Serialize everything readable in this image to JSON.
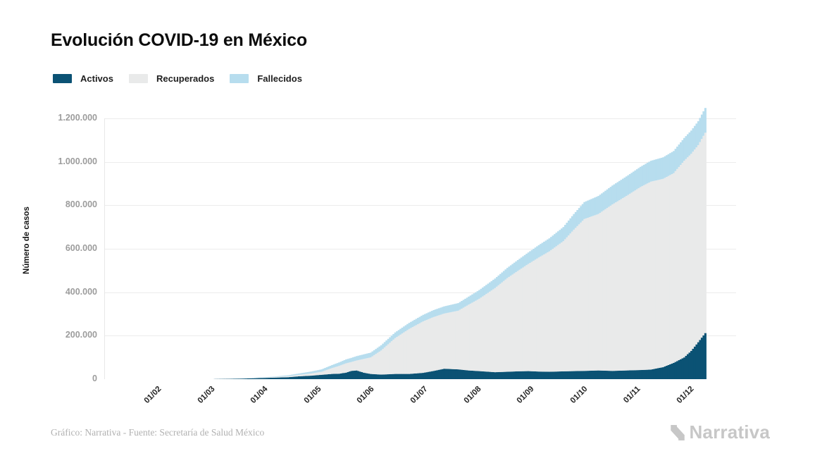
{
  "title": "Evolución COVID-19 en México",
  "legend": {
    "items": [
      {
        "id": "activos",
        "label": "Activos",
        "color": "#0b5274"
      },
      {
        "id": "recuperados",
        "label": "Recuperados",
        "color": "#e9eaea"
      },
      {
        "id": "fallecidos",
        "label": "Fallecidos",
        "color": "#b7ddee"
      }
    ]
  },
  "footer": {
    "credit": "Gráfico: Narrativa - Fuente: Secretaría de Salud México",
    "brand": "Narrativa"
  },
  "chart_data": {
    "type": "area",
    "stacked": true,
    "title": "Evolución COVID-19 en México",
    "ylabel": "Número de casos",
    "xlabel": "",
    "ylim": [
      0,
      1250000
    ],
    "grid": "horizontal",
    "legend_position": "top-left",
    "yticks": [
      "0",
      "200.000",
      "400.000",
      "600.000",
      "800.000",
      "1.000.000",
      "1.200.000"
    ],
    "xticks": [
      "01/02",
      "01/03",
      "01/04",
      "01/05",
      "01/06",
      "01/07",
      "01/08",
      "01/09",
      "01/10",
      "01/11",
      "01/12"
    ],
    "series_order": [
      "activos",
      "recuperados",
      "fallecidos"
    ],
    "colors": {
      "activos": "#0b5274",
      "recuperados": "#e9eaea",
      "fallecidos": "#b7ddee"
    },
    "samples": [
      {
        "date": "01/02",
        "day": 0,
        "activos": 0,
        "recuperados": 0,
        "fallecidos": 0
      },
      {
        "date": "01/03",
        "day": 29,
        "activos": 100,
        "recuperados": 50,
        "fallecidos": 50
      },
      {
        "date": "16/03",
        "day": 44,
        "activos": 1500,
        "recuperados": 500,
        "fallecidos": 500
      },
      {
        "date": "24/03",
        "day": 52,
        "activos": 3000,
        "recuperados": 1000,
        "fallecidos": 1000
      },
      {
        "date": "01/04",
        "day": 60,
        "activos": 5000,
        "recuperados": 1500,
        "fallecidos": 1500
      },
      {
        "date": "09/04",
        "day": 68,
        "activos": 7000,
        "recuperados": 3000,
        "fallecidos": 2000
      },
      {
        "date": "17/04",
        "day": 76,
        "activos": 9000,
        "recuperados": 5000,
        "fallecidos": 4000
      },
      {
        "date": "23/04",
        "day": 82,
        "activos": 13000,
        "recuperados": 7000,
        "fallecidos": 6000
      },
      {
        "date": "30/04",
        "day": 89,
        "activos": 16000,
        "recuperados": 10000,
        "fallecidos": 9000
      },
      {
        "date": "06/05",
        "day": 95,
        "activos": 20000,
        "recuperados": 14000,
        "fallecidos": 11000
      },
      {
        "date": "12/05",
        "day": 101,
        "activos": 24000,
        "recuperados": 27000,
        "fallecidos": 14000
      },
      {
        "date": "16/05",
        "day": 105,
        "activos": 25000,
        "recuperados": 36000,
        "fallecidos": 16000
      },
      {
        "date": "20/05",
        "day": 109,
        "activos": 30000,
        "recuperados": 43000,
        "fallecidos": 18000
      },
      {
        "date": "23/05",
        "day": 112,
        "activos": 38000,
        "recuperados": 41000,
        "fallecidos": 19000
      },
      {
        "date": "26/05",
        "day": 115,
        "activos": 40000,
        "recuperados": 46000,
        "fallecidos": 20000
      },
      {
        "date": "30/05",
        "day": 119,
        "activos": 30000,
        "recuperados": 63000,
        "fallecidos": 21000
      },
      {
        "date": "03/06",
        "day": 123,
        "activos": 24000,
        "recuperados": 76000,
        "fallecidos": 22000
      },
      {
        "date": "09/06",
        "day": 129,
        "activos": 21000,
        "recuperados": 111000,
        "fallecidos": 24000
      },
      {
        "date": "17/06",
        "day": 137,
        "activos": 24000,
        "recuperados": 165000,
        "fallecidos": 26000
      },
      {
        "date": "25/06",
        "day": 145,
        "activos": 24000,
        "recuperados": 207000,
        "fallecidos": 28000
      },
      {
        "date": "03/07",
        "day": 153,
        "activos": 29000,
        "recuperados": 237000,
        "fallecidos": 30000
      },
      {
        "date": "09/07",
        "day": 159,
        "activos": 38000,
        "recuperados": 248000,
        "fallecidos": 32000
      },
      {
        "date": "15/07",
        "day": 165,
        "activos": 48000,
        "recuperados": 254000,
        "fallecidos": 33000
      },
      {
        "date": "23/07",
        "day": 173,
        "activos": 45000,
        "recuperados": 270000,
        "fallecidos": 35000
      },
      {
        "date": "29/07",
        "day": 179,
        "activos": 40000,
        "recuperados": 303000,
        "fallecidos": 37000
      },
      {
        "date": "04/08",
        "day": 185,
        "activos": 37000,
        "recuperados": 333000,
        "fallecidos": 40000
      },
      {
        "date": "13/08",
        "day": 194,
        "activos": 32000,
        "recuperados": 387000,
        "fallecidos": 44000
      },
      {
        "date": "20/08",
        "day": 201,
        "activos": 34000,
        "recuperados": 431000,
        "fallecidos": 47000
      },
      {
        "date": "26/08",
        "day": 207,
        "activos": 36000,
        "recuperados": 462000,
        "fallecidos": 50000
      },
      {
        "date": "01/09",
        "day": 213,
        "activos": 37000,
        "recuperados": 493000,
        "fallecidos": 53000
      },
      {
        "date": "07/09",
        "day": 219,
        "activos": 35000,
        "recuperados": 525000,
        "fallecidos": 57000
      },
      {
        "date": "13/09",
        "day": 225,
        "activos": 34000,
        "recuperados": 554000,
        "fallecidos": 60000
      },
      {
        "date": "21/09",
        "day": 233,
        "activos": 36000,
        "recuperados": 599000,
        "fallecidos": 65000
      },
      {
        "date": "27/09",
        "day": 239,
        "activos": 37000,
        "recuperados": 651000,
        "fallecidos": 72000
      },
      {
        "date": "03/10",
        "day": 245,
        "activos": 38000,
        "recuperados": 699000,
        "fallecidos": 78000
      },
      {
        "date": "11/10",
        "day": 253,
        "activos": 40000,
        "recuperados": 720000,
        "fallecidos": 83000
      },
      {
        "date": "19/10",
        "day": 261,
        "activos": 38000,
        "recuperados": 766000,
        "fallecidos": 87000
      },
      {
        "date": "27/10",
        "day": 269,
        "activos": 40000,
        "recuperados": 803000,
        "fallecidos": 90000
      },
      {
        "date": "04/11",
        "day": 277,
        "activos": 42000,
        "recuperados": 842000,
        "fallecidos": 93000
      },
      {
        "date": "10/11",
        "day": 283,
        "activos": 44000,
        "recuperados": 865000,
        "fallecidos": 96000
      },
      {
        "date": "16/11",
        "day": 290,
        "activos": 55000,
        "recuperados": 867000,
        "fallecidos": 99000
      },
      {
        "date": "22/11",
        "day": 296,
        "activos": 75000,
        "recuperados": 873000,
        "fallecidos": 102000
      },
      {
        "date": "28/11",
        "day": 302,
        "activos": 100000,
        "recuperados": 905000,
        "fallecidos": 105000
      },
      {
        "date": "02/12",
        "day": 306,
        "activos": 130000,
        "recuperados": 907000,
        "fallecidos": 107000
      },
      {
        "date": "06/12",
        "day": 310,
        "activos": 170000,
        "recuperados": 907000,
        "fallecidos": 110000
      },
      {
        "date": "10/12",
        "day": 314,
        "activos": 212000,
        "recuperados": 922000,
        "fallecidos": 114000
      }
    ]
  }
}
